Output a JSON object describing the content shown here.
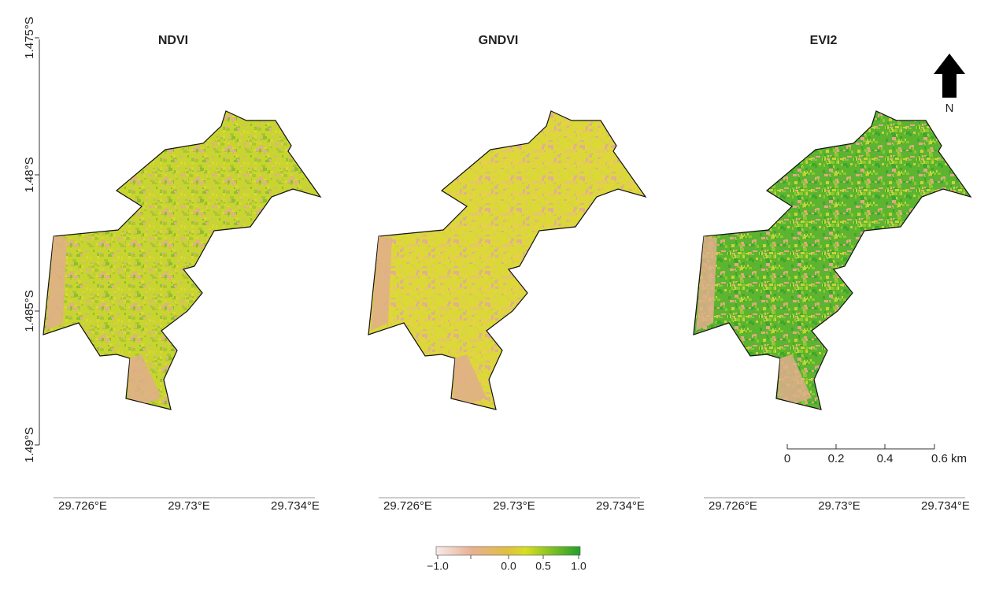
{
  "panels": [
    {
      "title": "NDVI",
      "x_labels": [
        "29.726°E",
        "29.73°E",
        "29.734°E"
      ]
    },
    {
      "title": "GNDVI",
      "x_labels": [
        "29.726°E",
        "29.73°E",
        "29.734°E"
      ]
    },
    {
      "title": "EVI2",
      "x_labels": [
        "29.726°E",
        "29.73°E",
        "29.734°E"
      ]
    }
  ],
  "y_labels": [
    "1.475°S",
    "1.48°S",
    "1.485°S",
    "1.49°S"
  ],
  "north_arrow": "N",
  "scale_bar": [
    "0",
    "0.2",
    "0.4",
    "0.6 km"
  ],
  "legend": [
    "−1.0",
    "0.0",
    "0.5",
    "1.0"
  ]
}
